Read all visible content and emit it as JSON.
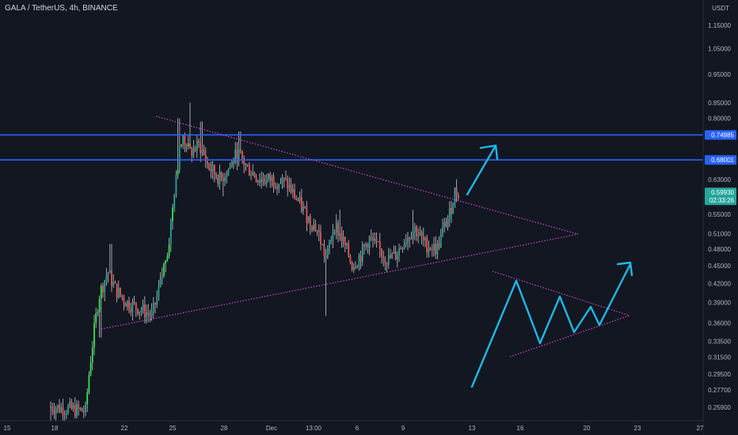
{
  "header": {
    "title": "GALA / TetherUS, 4h, BINANCE"
  },
  "colors": {
    "background": "#131722",
    "up": "#26a69a",
    "up_bright": "#2ee84a",
    "down": "#ef5350",
    "wick": "#c8c8c8",
    "level_line": "#2962ff",
    "trend_line": "#d64fd6",
    "arrow": "#1fb8e8",
    "price_tag": "#26a69a"
  },
  "chart_data": {
    "type": "candlestick",
    "title": "GALA / TetherUS, 4h, BINANCE",
    "price_axis": {
      "currency_label_top": "USDT",
      "ticks": [
        "1.15000",
        "1.05000",
        "0.95000",
        "0.85000",
        "0.80000",
        "0.63000",
        "0.55000",
        "0.51000",
        "0.48000",
        "0.45000",
        "0.42000",
        "0.39000",
        "0.36000",
        "0.33500",
        "0.31500",
        "0.29500",
        "0.27700",
        "0.25900"
      ],
      "range": [
        0.245,
        1.28
      ],
      "scale": "log"
    },
    "time_axis": {
      "ticks": [
        "15",
        "18",
        "22",
        "25",
        "28",
        "Dec",
        "13:00",
        "6",
        "9",
        "13",
        "16",
        "20",
        "23",
        "27"
      ]
    },
    "horizontal_levels": [
      {
        "price": 0.74985,
        "label": "0.74985"
      },
      {
        "price": 0.68001,
        "label": "0.68001"
      }
    ],
    "last_price": {
      "value": "0.59930",
      "countdown": "02:33:26"
    },
    "candles_sample": [
      {
        "t": "Nov 19",
        "o": 0.26,
        "h": 0.28,
        "l": 0.245,
        "c": 0.25
      },
      {
        "t": "Nov 21",
        "o": 0.3,
        "h": 0.48,
        "l": 0.29,
        "c": 0.45
      },
      {
        "t": "Nov 22",
        "o": 0.4,
        "h": 0.42,
        "l": 0.35,
        "c": 0.38
      },
      {
        "t": "Nov 25",
        "o": 0.56,
        "h": 0.8,
        "l": 0.55,
        "c": 0.76
      },
      {
        "t": "Nov 26",
        "o": 0.74,
        "h": 0.85,
        "l": 0.66,
        "c": 0.7
      },
      {
        "t": "Nov 28",
        "o": 0.66,
        "h": 0.74,
        "l": 0.58,
        "c": 0.62
      },
      {
        "t": "Dec 1",
        "o": 0.64,
        "h": 0.68,
        "l": 0.6,
        "c": 0.63
      },
      {
        "t": "Dec 4",
        "o": 0.54,
        "h": 0.56,
        "l": 0.37,
        "c": 0.46
      },
      {
        "t": "Dec 6",
        "o": 0.46,
        "h": 0.56,
        "l": 0.42,
        "c": 0.48
      },
      {
        "t": "Dec 9",
        "o": 0.47,
        "h": 0.56,
        "l": 0.46,
        "c": 0.51
      },
      {
        "t": "Dec 11",
        "o": 0.52,
        "h": 0.64,
        "l": 0.5,
        "c": 0.6
      }
    ]
  }
}
